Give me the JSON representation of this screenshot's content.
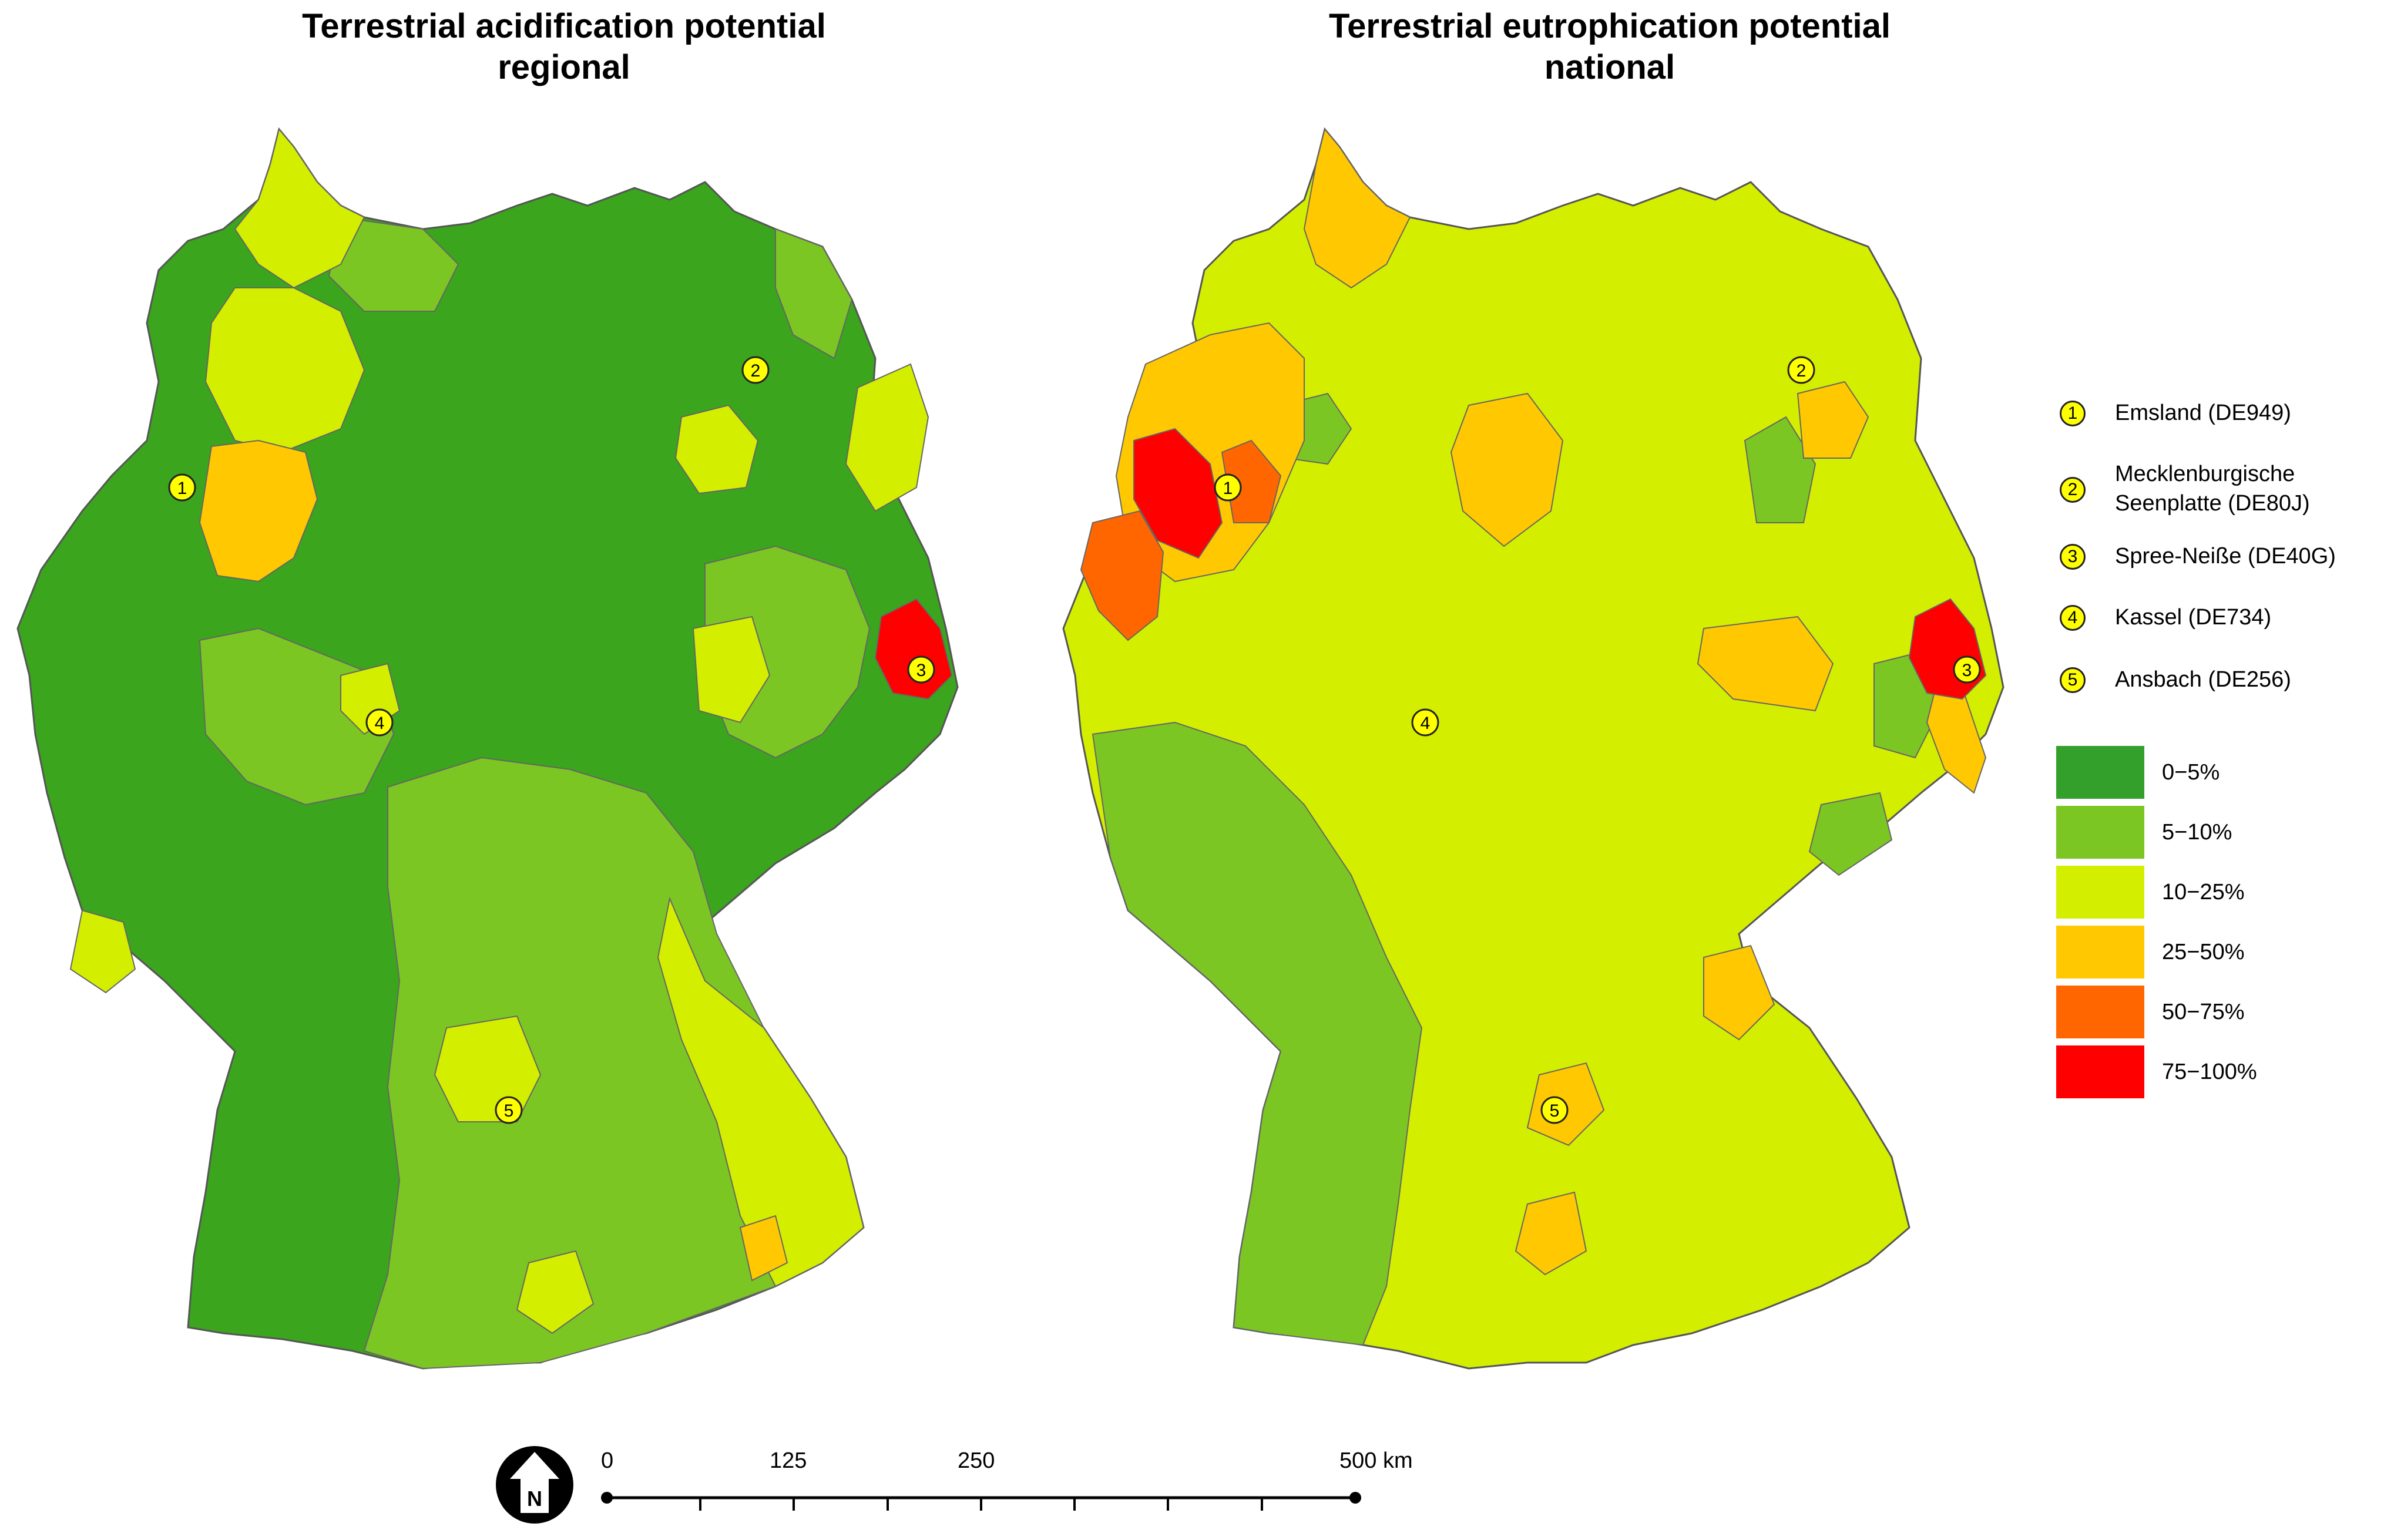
{
  "maps": [
    {
      "title_line1": "Terrestrial acidification potential",
      "title_line2": "regional"
    },
    {
      "title_line1": "Terrestrial eutrophication potential",
      "title_line2": "national"
    }
  ],
  "regions": [
    {
      "id": "1",
      "name": "Emsland (DE949)"
    },
    {
      "id": "2",
      "name_line1": "Mecklenburgische",
      "name_line2": "Seenplatte (DE80J)"
    },
    {
      "id": "3",
      "name": "Spree-Neiße (DE40G)"
    },
    {
      "id": "4",
      "name": "Kassel (DE734)"
    },
    {
      "id": "5",
      "name": "Ansbach (DE256)"
    }
  ],
  "legend_classes": [
    {
      "label": "0−5%",
      "color": "#33a02c"
    },
    {
      "label": "5−10%",
      "color": "#7cc623"
    },
    {
      "label": "10−25%",
      "color": "#d4ee00"
    },
    {
      "label": "25−50%",
      "color": "#ffc800"
    },
    {
      "label": "50−75%",
      "color": "#ff6600"
    },
    {
      "label": "75−100%",
      "color": "#ff0000"
    }
  ],
  "scale_bar": {
    "labels": [
      "0",
      "125",
      "250",
      "500 km"
    ]
  },
  "north_arrow": {
    "label": "N",
    "icon": "north-arrow-icon"
  }
}
